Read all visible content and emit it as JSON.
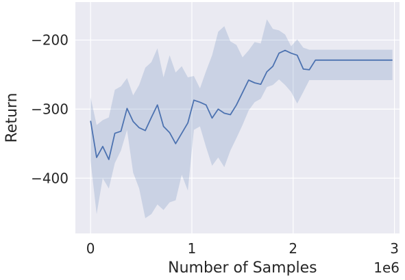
{
  "chart_data": {
    "type": "line",
    "title": "",
    "xlabel": "Number of Samples",
    "ylabel": "Return",
    "x_offset_label": "1e6",
    "xlim": [
      -0.15,
      3.05
    ],
    "ylim": [
      -480,
      -145
    ],
    "xticks": [
      0,
      1,
      2,
      3
    ],
    "xtick_labels": [
      "0",
      "1",
      "2",
      "3"
    ],
    "yticks": [
      -400,
      -300,
      -200
    ],
    "ytick_labels": [
      "−400",
      "−300",
      "−200"
    ],
    "grid": true,
    "legend": "none",
    "colors": {
      "line": "#4c72b0",
      "band": "#4c72b0",
      "background": "#eaeaf2",
      "grid": "#ffffff"
    },
    "series": [
      {
        "x": [
          0.0,
          0.06,
          0.12,
          0.18,
          0.24,
          0.3,
          0.36,
          0.42,
          0.48,
          0.54,
          0.6,
          0.66,
          0.72,
          0.78,
          0.84,
          0.9,
          0.96,
          1.02,
          1.08,
          1.14,
          1.2,
          1.26,
          1.32,
          1.38,
          1.44,
          1.5,
          1.56,
          1.62,
          1.68,
          1.74,
          1.8,
          1.86,
          1.92,
          1.98,
          2.04,
          2.1,
          2.16,
          2.22,
          2.28,
          2.34,
          2.4,
          2.46,
          2.52,
          2.58,
          2.64,
          2.7,
          2.76,
          2.82,
          2.88,
          2.94,
          2.98
        ],
        "y": [
          -317,
          -370,
          -354,
          -373,
          -335,
          -332,
          -299,
          -318,
          -327,
          -331,
          -312,
          -294,
          -325,
          -334,
          -350,
          -335,
          -320,
          -287,
          -290,
          -294,
          -313,
          -300,
          -306,
          -308,
          -294,
          -276,
          -258,
          -262,
          -264,
          -246,
          -238,
          -219,
          -215,
          -219,
          -222,
          -242,
          -243,
          -229,
          -229,
          -229,
          -229,
          -229,
          -229,
          -229,
          -229,
          -229,
          -229,
          -229,
          -229,
          -229,
          -229
        ],
        "lower": [
          -375,
          -452,
          -400,
          -415,
          -378,
          -360,
          -330,
          -392,
          -415,
          -458,
          -452,
          -438,
          -446,
          -435,
          -432,
          -395,
          -418,
          -330,
          -325,
          -355,
          -382,
          -370,
          -384,
          -360,
          -342,
          -323,
          -302,
          -290,
          -285,
          -268,
          -265,
          -257,
          -265,
          -275,
          -292,
          -275,
          -258,
          -258,
          -258,
          -258,
          -258,
          -258,
          -258,
          -258,
          -258,
          -258,
          -258,
          -258,
          -258,
          -258,
          -258
        ],
        "upper": [
          -283,
          -323,
          -316,
          -312,
          -272,
          -267,
          -255,
          -280,
          -265,
          -240,
          -232,
          -212,
          -254,
          -222,
          -247,
          -238,
          -254,
          -252,
          -270,
          -245,
          -222,
          -188,
          -180,
          -202,
          -207,
          -225,
          -215,
          -203,
          -205,
          -170,
          -184,
          -186,
          -192,
          -209,
          -199,
          -211,
          -214,
          -214,
          -214,
          -214,
          -214,
          -214,
          -214,
          -214,
          -214,
          -214,
          -214,
          -214,
          -214,
          -214,
          -214
        ]
      }
    ]
  }
}
